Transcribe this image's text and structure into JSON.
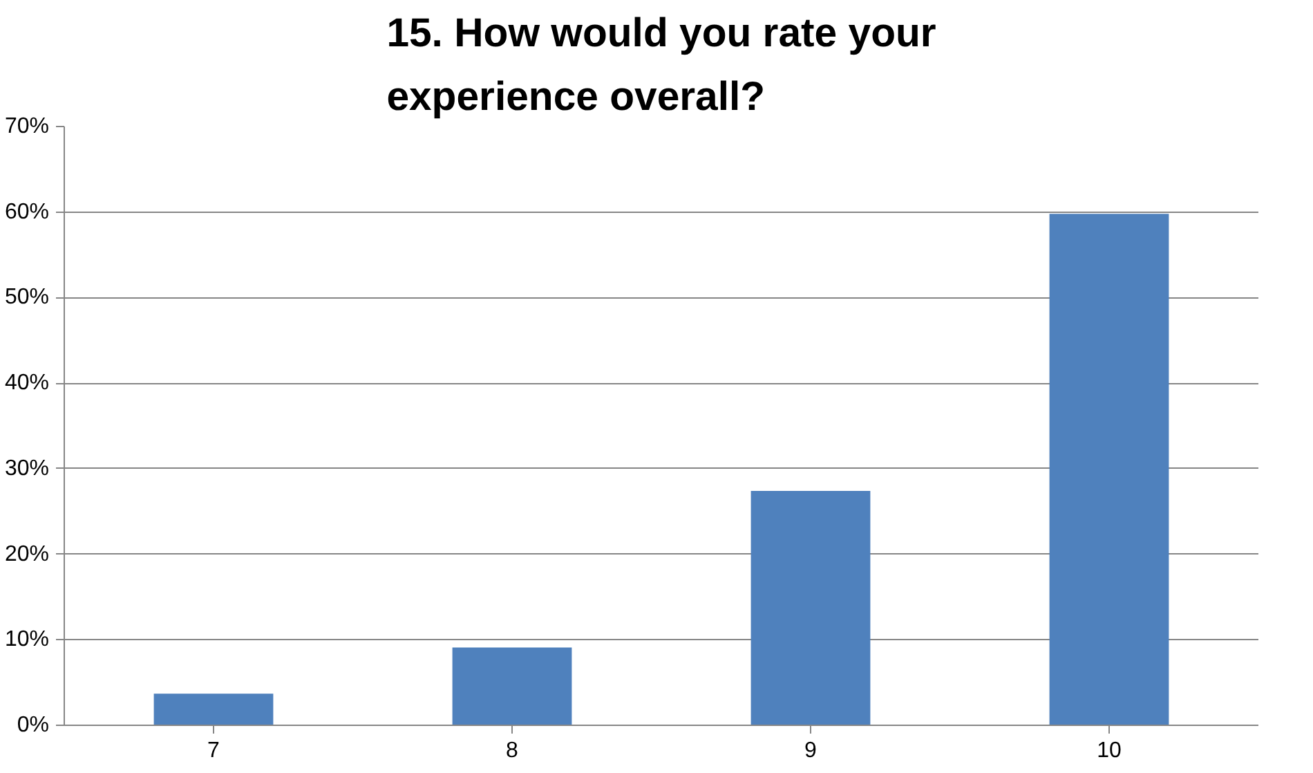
{
  "chart_data": {
    "type": "bar",
    "title": "15. How would you rate your experience overall?",
    "categories": [
      "7",
      "8",
      "9",
      "10"
    ],
    "values": [
      3.7,
      9.1,
      27.4,
      59.8
    ],
    "color": "#4f81bd",
    "ylim": [
      0,
      70
    ],
    "yticks": [
      {
        "value": 0,
        "label": "0%"
      },
      {
        "value": 10,
        "label": "10%"
      },
      {
        "value": 20,
        "label": "20%"
      },
      {
        "value": 30,
        "label": "30%"
      },
      {
        "value": 40,
        "label": "40%"
      },
      {
        "value": 50,
        "label": "50%"
      },
      {
        "value": 60,
        "label": "60%"
      },
      {
        "value": 70,
        "label": "70%"
      }
    ],
    "grid": "y"
  }
}
